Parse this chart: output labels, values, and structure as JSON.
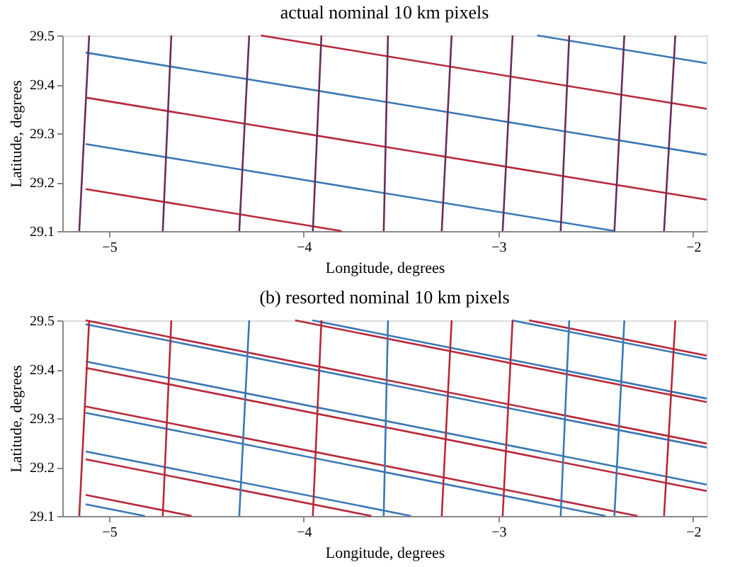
{
  "chart_data": [
    {
      "type": "line",
      "title": "actual nominal 10 km pixels",
      "xlabel": "Longitude, degrees",
      "ylabel": "Latitude, degrees",
      "xlim": [
        -5.24,
        -1.93
      ],
      "ylim": [
        29.1,
        29.5
      ],
      "xticks": [
        -5,
        -4,
        -3,
        -2
      ],
      "yticks": [
        29.1,
        29.2,
        29.3,
        29.4,
        29.5
      ],
      "grid": false,
      "legend": false,
      "line_style": "solid",
      "marker": "none",
      "series": [
        {
          "color": "#3a78b5",
          "x": [
            -2.8,
            -1.93
          ],
          "values": [
            29.5,
            29.443
          ]
        },
        {
          "color": "#b8283a",
          "x": [
            -4.22,
            -1.93
          ],
          "values": [
            29.5,
            29.35
          ]
        },
        {
          "color": "#3a78b5",
          "x": [
            -5.12,
            -1.93
          ],
          "values": [
            29.465,
            29.256
          ]
        },
        {
          "color": "#b8283a",
          "x": [
            -5.12,
            -1.93
          ],
          "values": [
            29.373,
            29.164
          ]
        },
        {
          "color": "#3a78b5",
          "x": [
            -5.12,
            -2.4
          ],
          "values": [
            29.278,
            29.1
          ]
        },
        {
          "color": "#b8283a",
          "x": [
            -5.12,
            -3.805
          ],
          "values": [
            29.186,
            29.1
          ]
        },
        {
          "color": "#6a2c5a",
          "x": [
            -5.102,
            -5.153
          ],
          "values": [
            29.5,
            29.1
          ]
        },
        {
          "color": "#6a2c5a",
          "x": [
            -4.68,
            -4.724
          ],
          "values": [
            29.5,
            29.1
          ]
        },
        {
          "color": "#6a2c5a",
          "x": [
            -4.28,
            -4.331
          ],
          "values": [
            29.5,
            29.1
          ]
        },
        {
          "color": "#6a2c5a",
          "x": [
            -3.909,
            -3.953
          ],
          "values": [
            29.5,
            29.1
          ]
        },
        {
          "color": "#6a2c5a",
          "x": [
            -3.567,
            -3.589
          ],
          "values": [
            29.5,
            29.1
          ]
        },
        {
          "color": "#6a2c5a",
          "x": [
            -3.24,
            -3.291
          ],
          "values": [
            29.5,
            29.1
          ]
        },
        {
          "color": "#6a2c5a",
          "x": [
            -2.927,
            -2.978
          ],
          "values": [
            29.5,
            29.1
          ]
        },
        {
          "color": "#6a2c5a",
          "x": [
            -2.636,
            -2.68
          ],
          "values": [
            29.5,
            29.1
          ]
        },
        {
          "color": "#6a2c5a",
          "x": [
            -2.353,
            -2.404
          ],
          "values": [
            29.5,
            29.1
          ]
        },
        {
          "color": "#6a2c5a",
          "x": [
            -2.091,
            -2.149
          ],
          "values": [
            29.5,
            29.1
          ]
        }
      ]
    },
    {
      "type": "line",
      "title": "(b) resorted nominal 10 km pixels",
      "xlabel": "Longitude, degrees",
      "ylabel": "Latitude, degrees",
      "xlim": [
        -5.24,
        -1.93
      ],
      "ylim": [
        29.1,
        29.5
      ],
      "xticks": [
        -5,
        -4,
        -3,
        -2
      ],
      "yticks": [
        29.1,
        29.2,
        29.3,
        29.4,
        29.5
      ],
      "grid": false,
      "legend": false,
      "line_style": "solid",
      "marker": "none",
      "series": [
        {
          "color": "#b8283a",
          "x": [
            -2.842,
            -1.93
          ],
          "values": [
            29.5,
            29.428
          ]
        },
        {
          "color": "#3a78b5",
          "x": [
            -2.93,
            -1.93
          ],
          "values": [
            29.5,
            29.421
          ]
        },
        {
          "color": "#3a78b5",
          "x": [
            -3.955,
            -1.93
          ],
          "values": [
            29.5,
            29.34
          ]
        },
        {
          "color": "#b8283a",
          "x": [
            -4.044,
            -1.93
          ],
          "values": [
            29.5,
            29.333
          ]
        },
        {
          "color": "#b8283a",
          "x": [
            -5.12,
            -1.93
          ],
          "values": [
            29.5,
            29.248
          ]
        },
        {
          "color": "#3a78b5",
          "x": [
            -5.12,
            -1.93
          ],
          "values": [
            29.492,
            29.24
          ]
        },
        {
          "color": "#3a78b5",
          "x": [
            -5.12,
            -1.93
          ],
          "values": [
            29.416,
            29.164
          ]
        },
        {
          "color": "#b8283a",
          "x": [
            -5.12,
            -1.93
          ],
          "values": [
            29.403,
            29.151
          ]
        },
        {
          "color": "#b8283a",
          "x": [
            -5.12,
            -2.285
          ],
          "values": [
            29.324,
            29.1
          ]
        },
        {
          "color": "#3a78b5",
          "x": [
            -5.12,
            -2.449
          ],
          "values": [
            29.311,
            29.1
          ]
        },
        {
          "color": "#3a78b5",
          "x": [
            -5.12,
            -3.449
          ],
          "values": [
            29.232,
            29.1
          ]
        },
        {
          "color": "#b8283a",
          "x": [
            -5.12,
            -3.652
          ],
          "values": [
            29.216,
            29.1
          ]
        },
        {
          "color": "#b8283a",
          "x": [
            -5.12,
            -4.576
          ],
          "values": [
            29.143,
            29.1
          ]
        },
        {
          "color": "#3a78b5",
          "x": [
            -5.12,
            -4.816
          ],
          "values": [
            29.124,
            29.1
          ]
        },
        {
          "color": "#b8283a",
          "x": [
            -5.102,
            -5.153
          ],
          "values": [
            29.5,
            29.1
          ]
        },
        {
          "color": "#b8283a",
          "x": [
            -4.68,
            -4.724
          ],
          "values": [
            29.5,
            29.1
          ]
        },
        {
          "color": "#3a78b5",
          "x": [
            -4.28,
            -4.331
          ],
          "values": [
            29.5,
            29.1
          ]
        },
        {
          "color": "#b8283a",
          "x": [
            -3.909,
            -3.953
          ],
          "values": [
            29.5,
            29.1
          ]
        },
        {
          "color": "#3a78b5",
          "x": [
            -3.567,
            -3.589
          ],
          "values": [
            29.5,
            29.1
          ]
        },
        {
          "color": "#b8283a",
          "x": [
            -3.24,
            -3.291
          ],
          "values": [
            29.5,
            29.1
          ]
        },
        {
          "color": "#b8283a",
          "x": [
            -2.927,
            -2.978
          ],
          "values": [
            29.5,
            29.1
          ]
        },
        {
          "color": "#3a78b5",
          "x": [
            -2.636,
            -2.68
          ],
          "values": [
            29.5,
            29.1
          ]
        },
        {
          "color": "#3a78b5",
          "x": [
            -2.353,
            -2.404
          ],
          "values": [
            29.5,
            29.1
          ]
        },
        {
          "color": "#b8283a",
          "x": [
            -2.091,
            -2.149
          ],
          "values": [
            29.5,
            29.1
          ]
        }
      ]
    }
  ]
}
